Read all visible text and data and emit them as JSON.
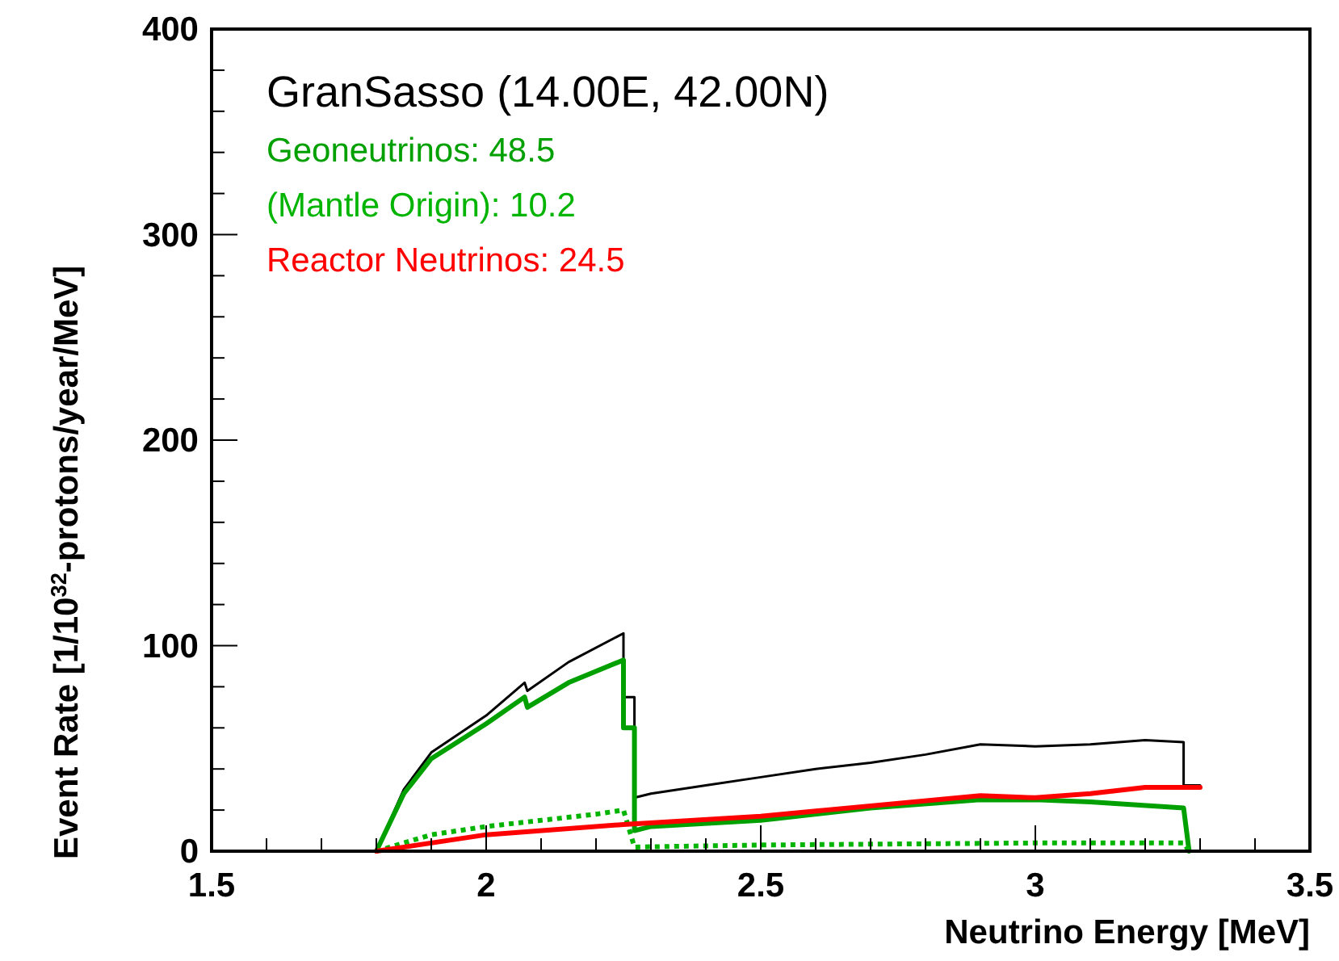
{
  "chart_data": {
    "type": "line",
    "title": "GranSasso (14.00E, 42.00N)",
    "xlabel": "Neutrino Energy [MeV]",
    "ylabel": "Event Rate [1/10$^{32}$-protons/year/MeV]",
    "xlim": [
      1.5,
      3.5
    ],
    "xticks": [
      1.5,
      {
        "value": 1.6,
        "label": null
      },
      {
        "value": 1.7,
        "label": null
      },
      {
        "value": 1.8,
        "label": null
      },
      {
        "value": 1.9,
        "label": null
      },
      2,
      {
        "value": 2.1,
        "label": null
      },
      {
        "value": 2.2,
        "label": null
      },
      {
        "value": 2.3,
        "label": null
      },
      {
        "value": 2.4,
        "label": null
      },
      2.5,
      {
        "value": 2.6,
        "label": null
      },
      {
        "value": 2.7,
        "label": null
      },
      {
        "value": 2.8,
        "label": null
      },
      {
        "value": 2.9,
        "label": null
      },
      3,
      {
        "value": 3.1,
        "label": null
      },
      {
        "value": 3.2,
        "label": null
      },
      {
        "value": 3.3,
        "label": null
      },
      {
        "value": 3.4,
        "label": null
      },
      3.5
    ],
    "ylim": [
      0,
      400
    ],
    "yticks": [
      0,
      {
        "value": 20,
        "label": null
      },
      {
        "value": 40,
        "label": null
      },
      {
        "value": 60,
        "label": null
      },
      {
        "value": 80,
        "label": null
      },
      100,
      {
        "value": 120,
        "label": null
      },
      {
        "value": 140,
        "label": null
      },
      {
        "value": 160,
        "label": null
      },
      {
        "value": 180,
        "label": null
      },
      200,
      {
        "value": 220,
        "label": null
      },
      {
        "value": 240,
        "label": null
      },
      {
        "value": 260,
        "label": null
      },
      {
        "value": 280,
        "label": null
      },
      300,
      {
        "value": 320,
        "label": null
      },
      {
        "value": 340,
        "label": null
      },
      {
        "value": 360,
        "label": null
      },
      {
        "value": 380,
        "label": null
      },
      400
    ],
    "grid": false,
    "legend": "top left",
    "marker": "none",
    "series": [
      {
        "color": "#000000",
        "line_style": "solid",
        "x": [
          1.8,
          1.85,
          1.9,
          2.0,
          2.07,
          2.075,
          2.15,
          2.25,
          2.25,
          2.27,
          2.27,
          2.3,
          2.4,
          2.5,
          2.6,
          2.7,
          2.8,
          2.9,
          3.0,
          3.1,
          3.2,
          3.27,
          3.27,
          3.3
        ],
        "values": [
          0,
          30,
          48,
          66,
          82,
          78,
          92,
          106,
          75,
          75,
          26,
          28,
          32,
          36,
          40,
          43,
          47,
          52,
          51,
          52,
          54,
          53,
          32,
          32
        ]
      },
      {
        "name": "Geoneutrinos: 48.5",
        "color": "#00a000",
        "line_style": "solid",
        "x": [
          1.8,
          1.85,
          1.9,
          2.0,
          2.07,
          2.075,
          2.15,
          2.25,
          2.25,
          2.27,
          2.27,
          2.3,
          2.5,
          2.7,
          2.9,
          3.0,
          3.1,
          3.27,
          3.28
        ],
        "values": [
          0,
          28,
          45,
          62,
          75,
          70,
          82,
          93,
          60,
          60,
          10,
          12,
          15,
          21,
          25,
          25,
          24,
          21,
          0
        ]
      },
      {
        "name": "(Mantle Origin): 10.2",
        "color": "#00b400",
        "line_style": "dotted",
        "x": [
          1.8,
          1.9,
          2.0,
          2.1,
          2.2,
          2.25,
          2.27,
          2.5,
          3.0,
          3.27,
          3.28
        ],
        "values": [
          0,
          8,
          12,
          15,
          18,
          20,
          2,
          3,
          4,
          4,
          0
        ]
      },
      {
        "name": "Reactor Neutrinos: 24.5",
        "color": "#ff0000",
        "line_style": "solid",
        "x": [
          1.8,
          2.0,
          2.25,
          2.5,
          2.7,
          2.9,
          3.0,
          3.1,
          3.2,
          3.3
        ],
        "values": [
          0,
          8,
          13,
          17,
          22,
          27,
          26,
          28,
          31,
          31
        ]
      }
    ]
  }
}
